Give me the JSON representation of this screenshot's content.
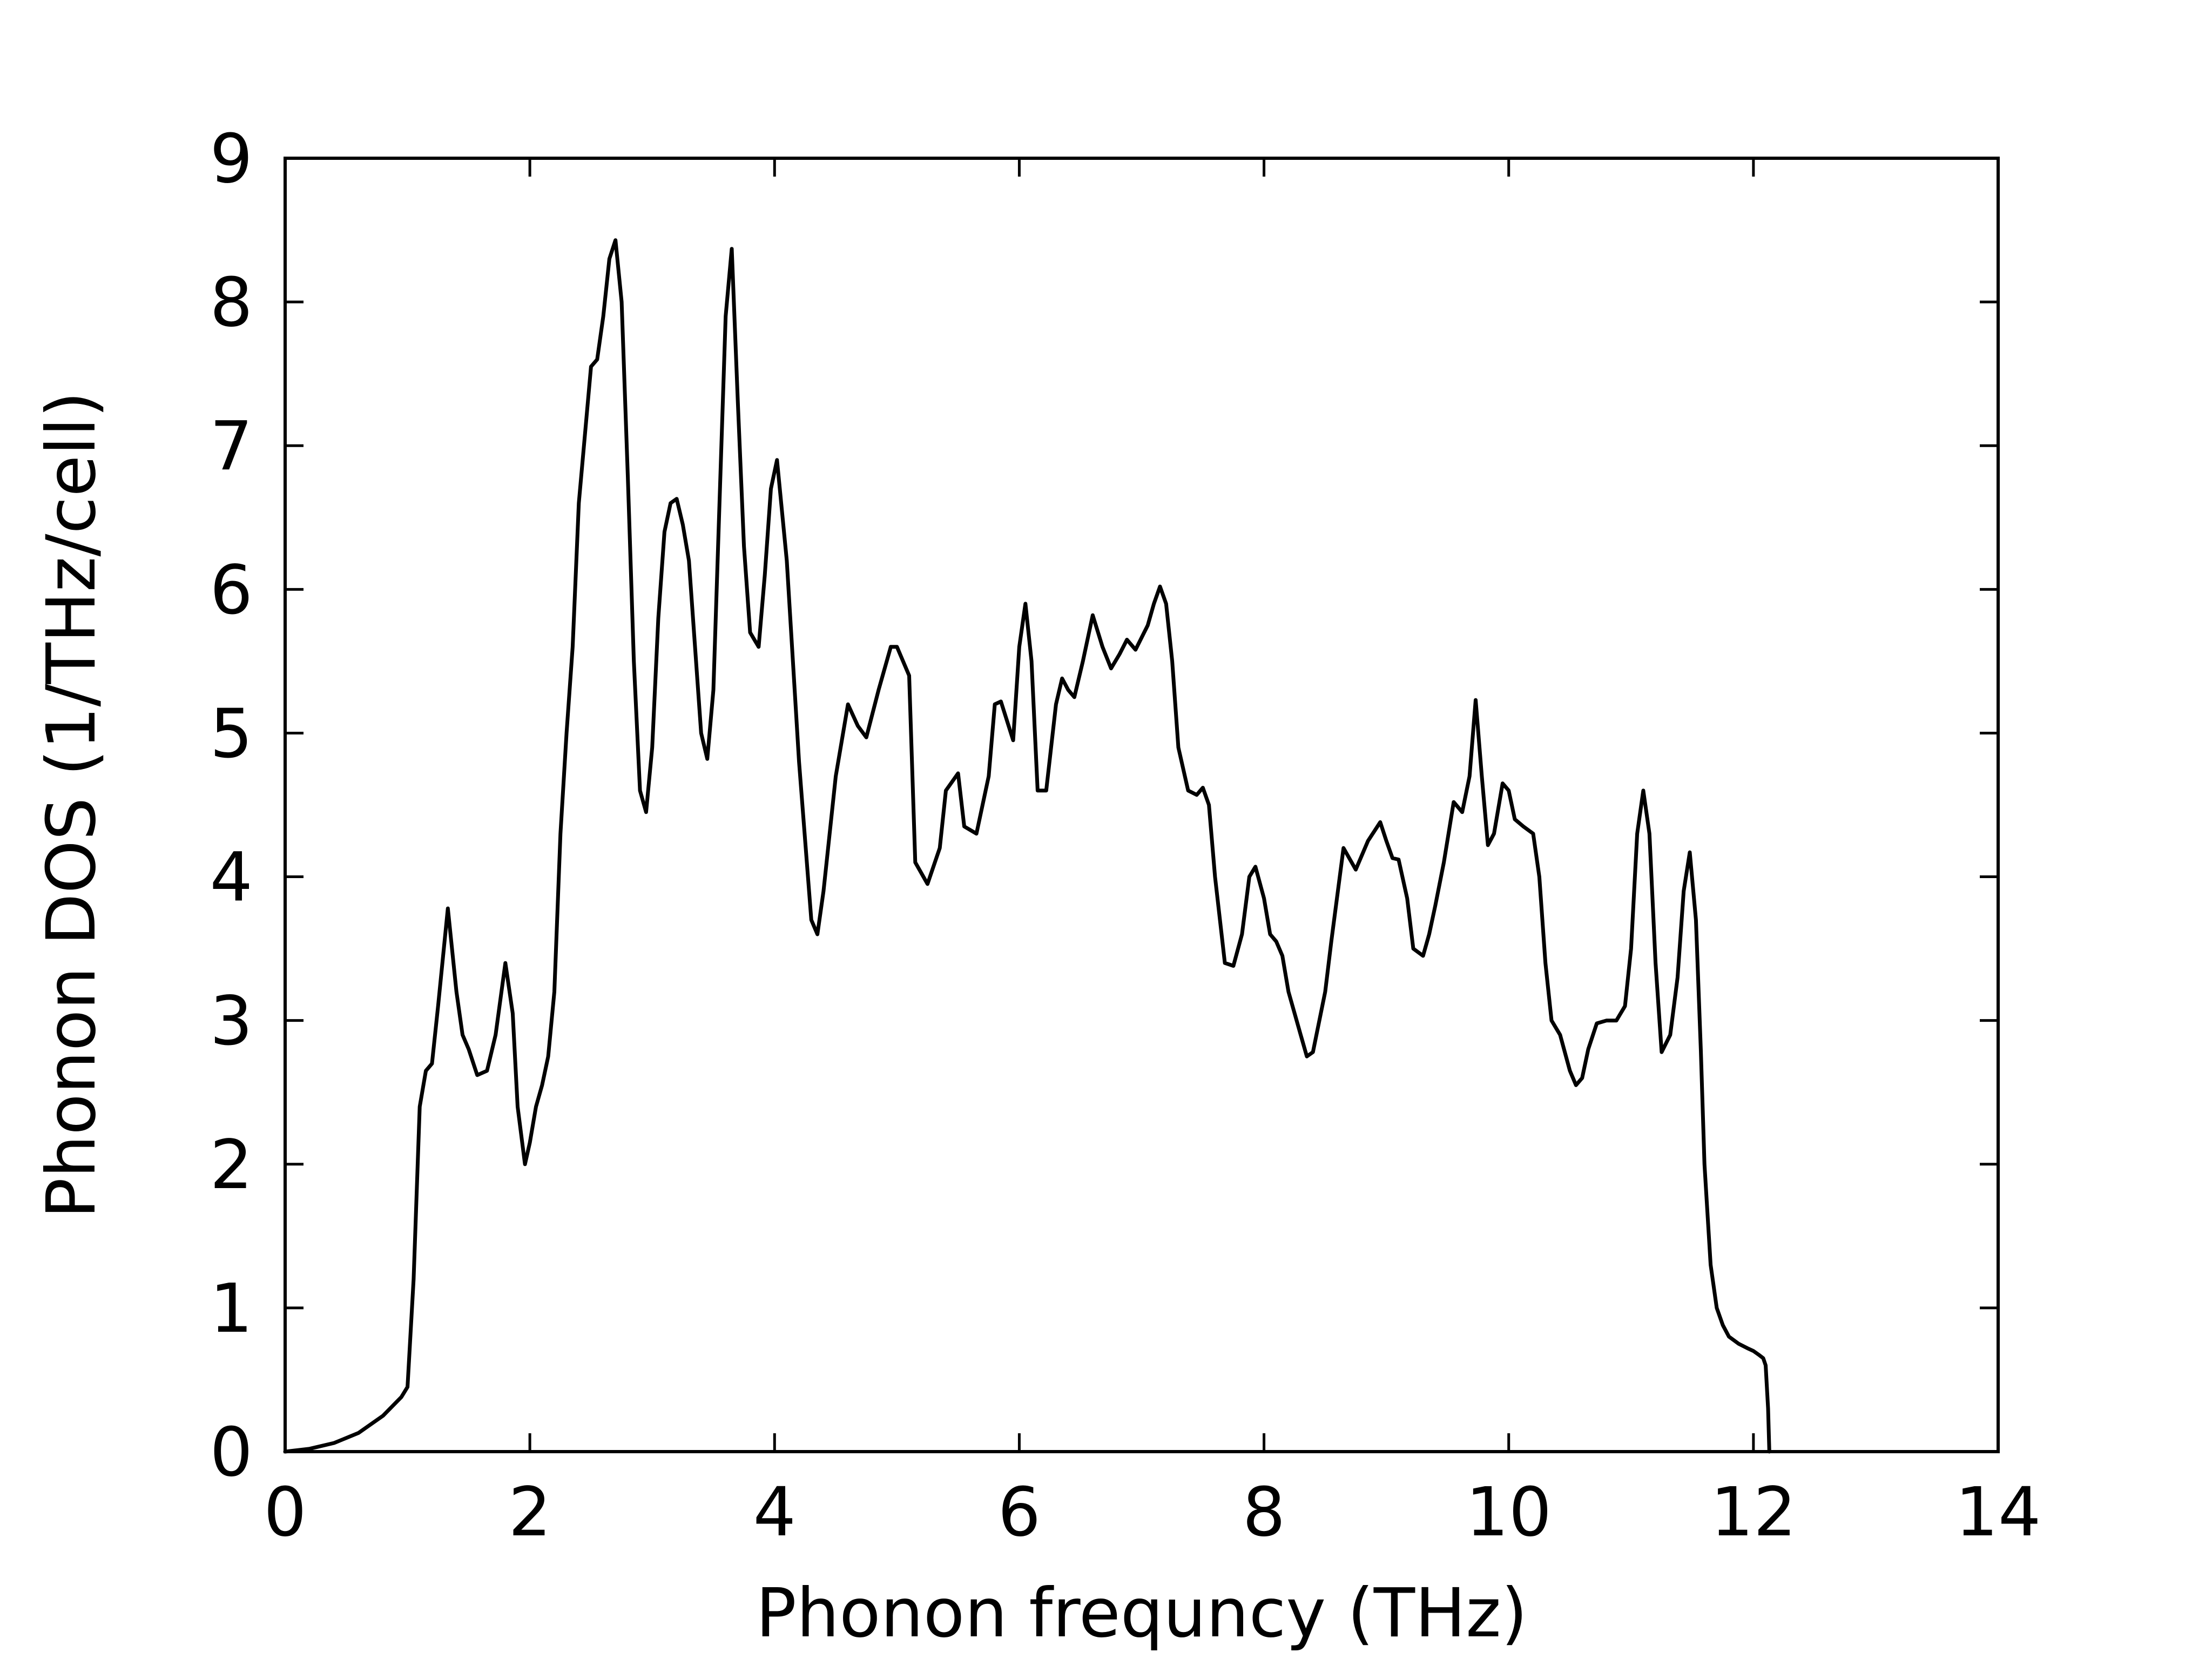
{
  "chart_data": {
    "type": "line",
    "title": "",
    "xlabel": "Phonon frequncy (THz)",
    "ylabel": "Phonon DOS (1/THz/cell)",
    "xlim": [
      0,
      14
    ],
    "ylim": [
      0,
      9
    ],
    "xticks": [
      0,
      2,
      4,
      6,
      8,
      10,
      12,
      14
    ],
    "yticks": [
      0,
      1,
      2,
      3,
      4,
      5,
      6,
      7,
      8,
      9
    ],
    "xtick_labels": [
      "0",
      "2",
      "4",
      "6",
      "8",
      "10",
      "12",
      "14"
    ],
    "ytick_labels": [
      "0",
      "1",
      "2",
      "3",
      "4",
      "5",
      "6",
      "7",
      "8",
      "9"
    ],
    "grid": false,
    "legend": "none",
    "line_color": "#000000",
    "series": [
      {
        "x": [
          0,
          0.2,
          0.4,
          0.6,
          0.8,
          0.95,
          1.0,
          1.05,
          1.1,
          1.15,
          1.2,
          1.25,
          1.33,
          1.4,
          1.45,
          1.5,
          1.57,
          1.65,
          1.72,
          1.8,
          1.86,
          1.9,
          1.96,
          2.0,
          2.05,
          2.1,
          2.15,
          2.2,
          2.25,
          2.3,
          2.35,
          2.4,
          2.5,
          2.55,
          2.6,
          2.65,
          2.7,
          2.75,
          2.8,
          2.85,
          2.9,
          2.95,
          3.0,
          3.05,
          3.1,
          3.15,
          3.2,
          3.25,
          3.3,
          3.35,
          3.4,
          3.45,
          3.5,
          3.55,
          3.6,
          3.65,
          3.7,
          3.75,
          3.8,
          3.87,
          3.92,
          3.97,
          4.02,
          4.1,
          4.2,
          4.3,
          4.35,
          4.4,
          4.5,
          4.6,
          4.68,
          4.75,
          4.85,
          4.95,
          5.0,
          5.1,
          5.15,
          5.25,
          5.35,
          5.4,
          5.5,
          5.55,
          5.65,
          5.75,
          5.8,
          5.85,
          5.95,
          6.0,
          6.05,
          6.1,
          6.15,
          6.22,
          6.3,
          6.35,
          6.4,
          6.45,
          6.52,
          6.6,
          6.68,
          6.75,
          6.82,
          6.88,
          6.95,
          7.05,
          7.1,
          7.15,
          7.2,
          7.25,
          7.3,
          7.38,
          7.45,
          7.5,
          7.55,
          7.6,
          7.68,
          7.75,
          7.82,
          7.88,
          7.93,
          8.0,
          8.05,
          8.1,
          8.15,
          8.2,
          8.3,
          8.35,
          8.4,
          8.5,
          8.55,
          8.65,
          8.75,
          8.85,
          8.95,
          9.0,
          9.05,
          9.1,
          9.17,
          9.22,
          9.3,
          9.35,
          9.4,
          9.47,
          9.55,
          9.62,
          9.68,
          9.73,
          9.78,
          9.83,
          9.88,
          9.95,
          10.0,
          10.05,
          10.12,
          10.2,
          10.25,
          10.3,
          10.35,
          10.42,
          10.5,
          10.55,
          10.6,
          10.65,
          10.72,
          10.8,
          10.88,
          10.95,
          11.0,
          11.05,
          11.1,
          11.15,
          11.2,
          11.25,
          11.32,
          11.38,
          11.43,
          11.48,
          11.53,
          11.57,
          11.6,
          11.65,
          11.7,
          11.75,
          11.8,
          11.88,
          11.95,
          12.0,
          12.05,
          12.08,
          12.1,
          12.12,
          12.13
        ],
        "y": [
          0,
          0.02,
          0.06,
          0.13,
          0.25,
          0.38,
          0.45,
          1.2,
          2.4,
          2.65,
          2.7,
          3.1,
          3.78,
          3.2,
          2.9,
          2.8,
          2.62,
          2.65,
          2.9,
          3.4,
          3.05,
          2.4,
          2.0,
          2.15,
          2.4,
          2.55,
          2.75,
          3.2,
          4.3,
          5.0,
          5.6,
          6.6,
          7.55,
          7.6,
          7.9,
          8.3,
          8.43,
          8.0,
          6.8,
          5.5,
          4.6,
          4.45,
          4.9,
          5.8,
          6.4,
          6.6,
          6.63,
          6.45,
          6.2,
          5.6,
          5.0,
          4.82,
          5.3,
          6.6,
          7.9,
          8.37,
          7.3,
          6.3,
          5.7,
          5.6,
          6.1,
          6.7,
          6.9,
          6.2,
          4.8,
          3.7,
          3.6,
          3.9,
          4.7,
          5.2,
          5.05,
          4.97,
          5.3,
          5.6,
          5.6,
          5.4,
          4.1,
          3.95,
          4.2,
          4.6,
          4.72,
          4.35,
          4.3,
          4.7,
          5.2,
          5.22,
          4.95,
          5.6,
          5.9,
          5.5,
          4.6,
          4.6,
          5.2,
          5.38,
          5.3,
          5.25,
          5.5,
          5.82,
          5.6,
          5.45,
          5.55,
          5.65,
          5.58,
          5.75,
          5.9,
          6.02,
          5.9,
          5.5,
          4.9,
          4.6,
          4.57,
          4.62,
          4.5,
          4.0,
          3.4,
          3.38,
          3.6,
          4.0,
          4.07,
          3.85,
          3.6,
          3.55,
          3.45,
          3.2,
          2.9,
          2.75,
          2.78,
          3.2,
          3.55,
          4.2,
          4.05,
          4.25,
          4.38,
          4.25,
          4.13,
          4.12,
          3.85,
          3.5,
          3.45,
          3.6,
          3.8,
          4.1,
          4.52,
          4.45,
          4.7,
          5.23,
          4.7,
          4.22,
          4.3,
          4.65,
          4.6,
          4.4,
          4.35,
          4.3,
          4.0,
          3.4,
          3.0,
          2.9,
          2.65,
          2.55,
          2.6,
          2.8,
          2.98,
          3.0,
          3.0,
          3.1,
          3.5,
          4.3,
          4.6,
          4.3,
          3.4,
          2.78,
          2.9,
          3.3,
          3.9,
          4.17,
          3.7,
          2.8,
          2.0,
          1.3,
          1.0,
          0.88,
          0.8,
          0.75,
          0.72,
          0.7,
          0.67,
          0.65,
          0.6,
          0.3,
          0
        ]
      }
    ]
  }
}
